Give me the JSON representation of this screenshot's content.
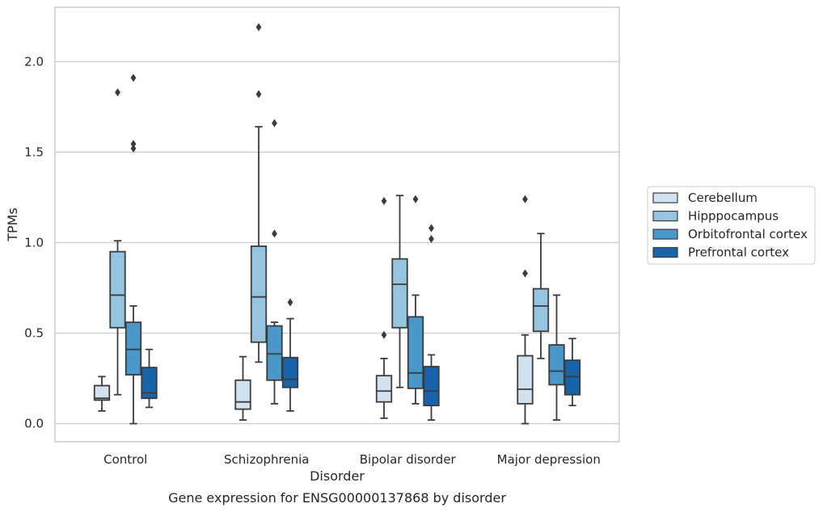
{
  "chart_data": {
    "type": "boxplot",
    "caption": "Gene expression for ENSG00000137868 by disorder",
    "xlabel": "Disorder",
    "ylabel": "TPMs",
    "ylim": [
      -0.1,
      2.3
    ],
    "yticks": [
      0.0,
      0.5,
      1.0,
      1.5,
      2.0
    ],
    "ytick_labels": [
      "0.0",
      "0.5",
      "1.0",
      "1.5",
      "2.0"
    ],
    "grid": "horizontal",
    "legend_position": "right",
    "categories": [
      "Control",
      "Schizophrenia",
      "Bipolar disorder",
      "Major depression"
    ],
    "series": [
      {
        "name": "Cerebellum",
        "color": "#d0e1f2",
        "boxes": [
          {
            "whislo": 0.07,
            "q1": 0.13,
            "med": 0.14,
            "q3": 0.21,
            "whishi": 0.26,
            "fliers": []
          },
          {
            "whislo": 0.02,
            "q1": 0.08,
            "med": 0.12,
            "q3": 0.24,
            "whishi": 0.37,
            "fliers": []
          },
          {
            "whislo": 0.03,
            "q1": 0.12,
            "med": 0.18,
            "q3": 0.265,
            "whishi": 0.36,
            "fliers": [
              0.49,
              1.23
            ]
          },
          {
            "whislo": 0.0,
            "q1": 0.11,
            "med": 0.19,
            "q3": 0.375,
            "whishi": 0.49,
            "fliers": [
              0.83,
              1.24
            ]
          }
        ]
      },
      {
        "name": "Hipppocampus",
        "color": "#94c4df",
        "boxes": [
          {
            "whislo": 0.16,
            "q1": 0.53,
            "med": 0.71,
            "q3": 0.95,
            "whishi": 1.01,
            "fliers": [
              1.83
            ]
          },
          {
            "whislo": 0.34,
            "q1": 0.45,
            "med": 0.7,
            "q3": 0.98,
            "whishi": 1.64,
            "fliers": [
              1.82,
              2.19
            ]
          },
          {
            "whislo": 0.2,
            "q1": 0.53,
            "med": 0.77,
            "q3": 0.91,
            "whishi": 1.26,
            "fliers": []
          },
          {
            "whislo": 0.36,
            "q1": 0.51,
            "med": 0.65,
            "q3": 0.745,
            "whishi": 1.05,
            "fliers": []
          }
        ]
      },
      {
        "name": "Orbitofrontal cortex",
        "color": "#4a98c9",
        "boxes": [
          {
            "whislo": 0.0,
            "q1": 0.27,
            "med": 0.41,
            "q3": 0.56,
            "whishi": 0.65,
            "fliers": [
              1.52,
              1.545,
              1.91
            ]
          },
          {
            "whislo": 0.11,
            "q1": 0.24,
            "med": 0.385,
            "q3": 0.54,
            "whishi": 0.56,
            "fliers": [
              1.05,
              1.66
            ]
          },
          {
            "whislo": 0.11,
            "q1": 0.195,
            "med": 0.28,
            "q3": 0.59,
            "whishi": 0.71,
            "fliers": [
              1.24
            ]
          },
          {
            "whislo": 0.02,
            "q1": 0.215,
            "med": 0.29,
            "q3": 0.435,
            "whishi": 0.71,
            "fliers": []
          }
        ]
      },
      {
        "name": "Prefrontal cortex",
        "color": "#1764ab",
        "boxes": [
          {
            "whislo": 0.09,
            "q1": 0.14,
            "med": 0.17,
            "q3": 0.31,
            "whishi": 0.41,
            "fliers": []
          },
          {
            "whislo": 0.07,
            "q1": 0.2,
            "med": 0.245,
            "q3": 0.365,
            "whishi": 0.58,
            "fliers": [
              0.67
            ]
          },
          {
            "whislo": 0.02,
            "q1": 0.1,
            "med": 0.18,
            "q3": 0.315,
            "whishi": 0.38,
            "fliers": [
              1.02,
              1.08
            ]
          },
          {
            "whislo": 0.1,
            "q1": 0.16,
            "med": 0.26,
            "q3": 0.35,
            "whishi": 0.47,
            "fliers": []
          }
        ]
      }
    ],
    "colors": {
      "edge": "#3b3b3b",
      "grid": "#cccccc",
      "frame": "#cccccc",
      "text": "#262626"
    }
  }
}
